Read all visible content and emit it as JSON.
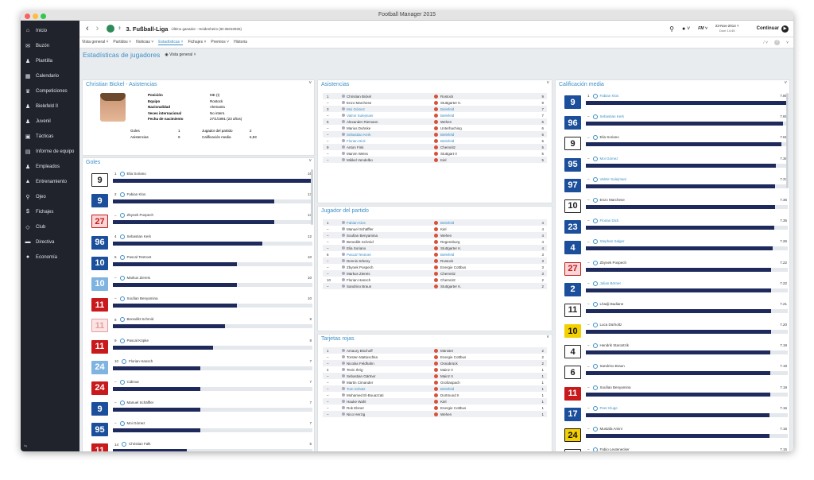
{
  "window_title": "Football Manager 2015",
  "colors": {
    "sidebar": "#20232b",
    "accent": "#3d8fc6",
    "bar": "#1e2a5c",
    "leader_kit": "#1b4f9b",
    "red_kit": "#c8191c"
  },
  "sidebar": {
    "items": [
      {
        "label": "Inicio",
        "icon": "home-icon",
        "glyph": "⌂"
      },
      {
        "label": "Buzón",
        "icon": "inbox-icon",
        "glyph": "✉"
      },
      {
        "label": "Plantilla",
        "icon": "squad-icon",
        "glyph": "♟"
      },
      {
        "label": "Calendario",
        "icon": "calendar-icon",
        "glyph": "▦"
      },
      {
        "label": "Competiciones",
        "icon": "trophy-icon",
        "glyph": "♛"
      },
      {
        "label": "Bielefeld II",
        "icon": "team-icon",
        "glyph": "♟"
      },
      {
        "label": "Juvenil",
        "icon": "youth-icon",
        "glyph": "♟"
      },
      {
        "label": "Tácticas",
        "icon": "tactics-icon",
        "glyph": "▣"
      },
      {
        "label": "Informe de equipo",
        "icon": "report-icon",
        "glyph": "▤"
      },
      {
        "label": "Empleados",
        "icon": "staff-icon",
        "glyph": "♟"
      },
      {
        "label": "Entrenamiento",
        "icon": "training-icon",
        "glyph": "▲"
      },
      {
        "label": "Ojeo",
        "icon": "scouting-icon",
        "glyph": "⚲"
      },
      {
        "label": "Fichajes",
        "icon": "transfers-icon",
        "glyph": "$"
      },
      {
        "label": "Club",
        "icon": "club-icon",
        "glyph": "◇"
      },
      {
        "label": "Directiva",
        "icon": "board-icon",
        "glyph": "▬"
      },
      {
        "label": "Economía",
        "icon": "finance-icon",
        "glyph": "●"
      }
    ]
  },
  "header": {
    "competition": "3. Fußball-Liga",
    "subtitle": "Último ganador - Heidenheim (ID:35010926)",
    "date": "23-Nov-2014",
    "time": "Dom 14:45",
    "continue": "Continuar"
  },
  "subnav": {
    "items": [
      "Vista general",
      "Partidos",
      "Noticias",
      "Estadísticas",
      "Fichajes",
      "Premios",
      "Historia"
    ]
  },
  "page_title": "Estadísticas de jugadores",
  "view_label": "Vista general",
  "player": {
    "panel_title": "Christian Bickel - Asistencias",
    "fields": [
      {
        "k": "Posición",
        "v": "ME (I)"
      },
      {
        "k": "Equipo",
        "v": "Rostock"
      },
      {
        "k": "Nacionalidad",
        "v": "Alemania"
      },
      {
        "k": "Veces internacional",
        "v": "No intern."
      },
      {
        "k": "Fecha de nacimiento",
        "v": "27/1/1991 (23 años)"
      }
    ],
    "stats": [
      {
        "k": "Goles",
        "v": "1",
        "k2": "Jugador del partido",
        "v2": "2"
      },
      {
        "k": "Asistencias",
        "v": "9",
        "k2": "Calificación media",
        "v2": "6,93"
      }
    ]
  },
  "goles": {
    "title": "Goles",
    "rows": [
      {
        "pos": "1",
        "name": "Elia Soriano",
        "val": "16",
        "frac": 1.0,
        "kit": "9",
        "kc": "#ffffff",
        "kt": "#222",
        "kb": "#222"
      },
      {
        "pos": "2",
        "name": "Fabian Klos",
        "val": "13",
        "frac": 0.81,
        "kit": "9",
        "kc": "#1b4f9b",
        "kt": "#fff",
        "kb": "#1b4f9b"
      },
      {
        "pos": "–",
        "name": "Zbynek Pospech",
        "val": "13",
        "frac": 0.81,
        "kit": "27",
        "kc": "#f6d6d6",
        "kt": "#c8191c",
        "kb": "#c8191c"
      },
      {
        "pos": "4",
        "name": "Sebastian Kerk",
        "val": "12",
        "frac": 0.75,
        "kit": "96",
        "kc": "#1b4f9b",
        "kt": "#fff",
        "kb": "#1b4f9b"
      },
      {
        "pos": "5",
        "name": "Pascal Testroet",
        "val": "10",
        "frac": 0.62,
        "kit": "10",
        "kc": "#1b4f9b",
        "kt": "#fff",
        "kb": "#1b4f9b"
      },
      {
        "pos": "–",
        "name": "Markus Ziereis",
        "val": "10",
        "frac": 0.62,
        "kit": "10",
        "kc": "#7fb3e0",
        "kt": "#fff",
        "kb": "#7fb3e0"
      },
      {
        "pos": "–",
        "name": "Soufian Benyamina",
        "val": "10",
        "frac": 0.62,
        "kit": "11",
        "kc": "#c8191c",
        "kt": "#fff",
        "kb": "#c8191c"
      },
      {
        "pos": "8",
        "name": "Benedikt Schmid",
        "val": "9",
        "frac": 0.56,
        "kit": "11",
        "kc": "#fce4e4",
        "kt": "#e0a0a0",
        "kb": "#e0a0a0"
      },
      {
        "pos": "9",
        "name": "Pascal Köpke",
        "val": "8",
        "frac": 0.5,
        "kit": "11",
        "kc": "#c8191c",
        "kt": "#fff",
        "kb": "#c8191c"
      },
      {
        "pos": "10",
        "name": "Florian Hansch",
        "val": "7",
        "frac": 0.44,
        "kit": "24",
        "kc": "#7fb3e0",
        "kt": "#fff",
        "kb": "#7fb3e0"
      },
      {
        "pos": "–",
        "name": "Cidimar",
        "val": "7",
        "frac": 0.44,
        "kit": "24",
        "kc": "#c8191c",
        "kt": "#fff",
        "kb": "#c8191c"
      },
      {
        "pos": "–",
        "name": "Manuel Schäffler",
        "val": "7",
        "frac": 0.44,
        "kit": "9",
        "kc": "#1b4f9b",
        "kt": "#fff",
        "kb": "#1b4f9b"
      },
      {
        "pos": "–",
        "name": "Moi Gómez",
        "val": "7",
        "frac": 0.44,
        "kit": "95",
        "kc": "#1b4f9b",
        "kt": "#fff",
        "kb": "#1b4f9b"
      },
      {
        "pos": "14",
        "name": "Christian Falk",
        "val": "6",
        "frac": 0.37,
        "kit": "11",
        "kc": "#c8191c",
        "kt": "#fff",
        "kb": "#c8191c"
      }
    ]
  },
  "asistencias": {
    "title": "Asistencias",
    "rows": [
      {
        "pos": "1",
        "name": "Christian Bickel",
        "team": "Rostock",
        "val": "9",
        "hl": false
      },
      {
        "pos": "–",
        "name": "Enzo Marchese",
        "team": "Stuttgarter K.",
        "val": "9",
        "hl": false
      },
      {
        "pos": "3",
        "name": "Moi Gómez",
        "team": "Bielefeld",
        "val": "7",
        "hl": true
      },
      {
        "pos": "–",
        "name": "Valmir Sulejmani",
        "team": "Bielefeld",
        "val": "7",
        "hl": true
      },
      {
        "pos": "5",
        "name": "Alexander Riemann",
        "team": "Wehen",
        "val": "6",
        "hl": false
      },
      {
        "pos": "–",
        "name": "Marius Duhnke",
        "team": "Unterhaching",
        "val": "6",
        "hl": false
      },
      {
        "pos": "–",
        "name": "Sebastian Kerk",
        "team": "Bielefeld",
        "val": "6",
        "hl": true
      },
      {
        "pos": "–",
        "name": "Florian Dick",
        "team": "Bielefeld",
        "val": "6",
        "hl": true
      },
      {
        "pos": "9",
        "name": "Anton Fink",
        "team": "Chemnitz",
        "val": "5",
        "hl": false
      },
      {
        "pos": "–",
        "name": "Marvin Weiss",
        "team": "Stuttgart II",
        "val": "5",
        "hl": false
      },
      {
        "pos": "–",
        "name": "Mikkel Vendelbo",
        "team": "Kiel",
        "val": "5",
        "hl": false
      }
    ]
  },
  "jugador": {
    "title": "Jugador del partido",
    "rows": [
      {
        "pos": "1",
        "name": "Fabian Klos",
        "team": "Bielefeld",
        "val": "4",
        "hl": true
      },
      {
        "pos": "–",
        "name": "Manuel Schäffler",
        "team": "Kiel",
        "val": "4",
        "hl": false
      },
      {
        "pos": "–",
        "name": "Soufian Benyamina",
        "team": "Wehen",
        "val": "4",
        "hl": false
      },
      {
        "pos": "–",
        "name": "Benedikt Schmid",
        "team": "Regensburg",
        "val": "4",
        "hl": false
      },
      {
        "pos": "–",
        "name": "Elia Soriano",
        "team": "Stuttgarter K.",
        "val": "4",
        "hl": false
      },
      {
        "pos": "6",
        "name": "Pascal Testroet",
        "team": "Bielefeld",
        "val": "3",
        "hl": true
      },
      {
        "pos": "–",
        "name": "Dennis Srbeny",
        "team": "Rostock",
        "val": "3",
        "hl": false
      },
      {
        "pos": "–",
        "name": "Zbynek Pospech",
        "team": "Energie Cottbus",
        "val": "3",
        "hl": false
      },
      {
        "pos": "–",
        "name": "Markus Ziereis",
        "team": "Chemnitz",
        "val": "3",
        "hl": false
      },
      {
        "pos": "10",
        "name": "Florian Hansch",
        "team": "Chemnitz",
        "val": "2",
        "hl": false
      },
      {
        "pos": "–",
        "name": "Sandrino Braun",
        "team": "Stuttgarter K.",
        "val": "2",
        "hl": false
      }
    ]
  },
  "rojas": {
    "title": "Tarjetas rojas",
    "rows": [
      {
        "pos": "1",
        "name": "Amaury Bischoff",
        "team": "Münster",
        "val": "2",
        "hl": false
      },
      {
        "pos": "–",
        "name": "Torsten Mattuschka",
        "team": "Energie Cottbus",
        "val": "2",
        "hl": false
      },
      {
        "pos": "–",
        "name": "Nicolas Feldhahn",
        "team": "Osnabrück",
        "val": "2",
        "hl": false
      },
      {
        "pos": "4",
        "name": "Tevin Ihrig",
        "team": "Mainz II",
        "val": "1",
        "hl": false
      },
      {
        "pos": "–",
        "name": "Sebastian Gärtner",
        "team": "Mainz II",
        "val": "1",
        "hl": false
      },
      {
        "pos": "–",
        "name": "Martin Cimander",
        "team": "Großaspach",
        "val": "1",
        "hl": false
      },
      {
        "pos": "–",
        "name": "Tom Schütz",
        "team": "Bielefeld",
        "val": "1",
        "hl": true
      },
      {
        "pos": "–",
        "name": "Mohamed El-Bouazzati",
        "team": "Dortmund II",
        "val": "1",
        "hl": false
      },
      {
        "pos": "–",
        "name": "Hauke Wahl",
        "team": "Kiel",
        "val": "1",
        "hl": false
      },
      {
        "pos": "–",
        "name": "Rok Elsner",
        "team": "Energie Cottbus",
        "val": "1",
        "hl": false
      },
      {
        "pos": "–",
        "name": "Nico Herzig",
        "team": "Wehen",
        "val": "1",
        "hl": false
      }
    ]
  },
  "calificacion": {
    "title": "Calificación media",
    "rows": [
      {
        "pos": "1",
        "name": "Fabian Klos",
        "val": "7.86",
        "frac": 1.0,
        "kit": "9",
        "kc": "#1b4f9b",
        "kt": "#fff",
        "kb": "#1b4f9b",
        "hl": true
      },
      {
        "pos": "–",
        "name": "Sebastian Kerk",
        "val": "7.69",
        "frac": 0.978,
        "kit": "96",
        "kc": "#1b4f9b",
        "kt": "#fff",
        "kb": "#1b4f9b",
        "hl": true
      },
      {
        "pos": "–",
        "name": "Elia Soriano",
        "val": "7.61",
        "frac": 0.968,
        "kit": "9",
        "kc": "#ffffff",
        "kt": "#222",
        "kb": "#222",
        "hl": false
      },
      {
        "pos": "–",
        "name": "Moi Gómez",
        "val": "7.38",
        "frac": 0.939,
        "kit": "95",
        "kc": "#1b4f9b",
        "kt": "#fff",
        "kb": "#1b4f9b",
        "hl": true
      },
      {
        "pos": "–",
        "name": "Valmir Sulejmani",
        "val": "7.37",
        "frac": 0.937,
        "kit": "97",
        "kc": "#1b4f9b",
        "kt": "#fff",
        "kb": "#1b4f9b",
        "hl": true
      },
      {
        "pos": "–",
        "name": "Enzo Marchese",
        "val": "7.36",
        "frac": 0.936,
        "kit": "10",
        "kc": "#ffffff",
        "kt": "#222",
        "kb": "#222",
        "hl": false
      },
      {
        "pos": "–",
        "name": "Florian Dick",
        "val": "7.35",
        "frac": 0.935,
        "kit": "23",
        "kc": "#1b4f9b",
        "kt": "#fff",
        "kb": "#1b4f9b",
        "hl": true
      },
      {
        "pos": "–",
        "name": "Stephan Salger",
        "val": "7.26",
        "frac": 0.924,
        "kit": "4",
        "kc": "#1b4f9b",
        "kt": "#fff",
        "kb": "#1b4f9b",
        "hl": true
      },
      {
        "pos": "–",
        "name": "Zbynek Pospech",
        "val": "7.22",
        "frac": 0.918,
        "kit": "27",
        "kc": "#f6d6d6",
        "kt": "#c8191c",
        "kb": "#c8191c",
        "hl": false
      },
      {
        "pos": "–",
        "name": "Julian Börner",
        "val": "7.22",
        "frac": 0.918,
        "kit": "2",
        "kc": "#1b4f9b",
        "kt": "#fff",
        "kb": "#1b4f9b",
        "hl": true
      },
      {
        "pos": "–",
        "name": "Lhadji Badiane",
        "val": "7.21",
        "frac": 0.917,
        "kit": "11",
        "kc": "#ffffff",
        "kt": "#222",
        "kb": "#222",
        "hl": false
      },
      {
        "pos": "–",
        "name": "Luca Dürholtz",
        "val": "7.20",
        "frac": 0.916,
        "kit": "10",
        "kc": "#f4d000",
        "kt": "#111",
        "kb": "#f4d000",
        "hl": false
      },
      {
        "pos": "–",
        "name": "Hendrik Starostzik",
        "val": "7.19",
        "frac": 0.915,
        "kit": "4",
        "kc": "#ffffff",
        "kt": "#222",
        "kb": "#222",
        "hl": false
      },
      {
        "pos": "–",
        "name": "Sandrino Braun",
        "val": "7.19",
        "frac": 0.915,
        "kit": "6",
        "kc": "#ffffff",
        "kt": "#222",
        "kb": "#222",
        "hl": false
      },
      {
        "pos": "–",
        "name": "Soufian Benyamina",
        "val": "7.19",
        "frac": 0.915,
        "kit": "11",
        "kc": "#c8191c",
        "kt": "#fff",
        "kb": "#c8191c",
        "hl": false
      },
      {
        "pos": "–",
        "name": "Peer Kluge",
        "val": "7.16",
        "frac": 0.911,
        "kit": "17",
        "kc": "#1b4f9b",
        "kt": "#fff",
        "kb": "#1b4f9b",
        "hl": true
      },
      {
        "pos": "–",
        "name": "Mustafa Amini",
        "val": "7.16",
        "frac": 0.911,
        "kit": "24",
        "kc": "#f4d000",
        "kt": "#111",
        "kb": "#111",
        "hl": false
      },
      {
        "pos": "–",
        "name": "Fabio Leutenecker",
        "val": "7.15",
        "frac": 0.91,
        "kit": "",
        "kc": "#ffffff",
        "kt": "#222",
        "kb": "#222",
        "hl": false
      }
    ]
  }
}
